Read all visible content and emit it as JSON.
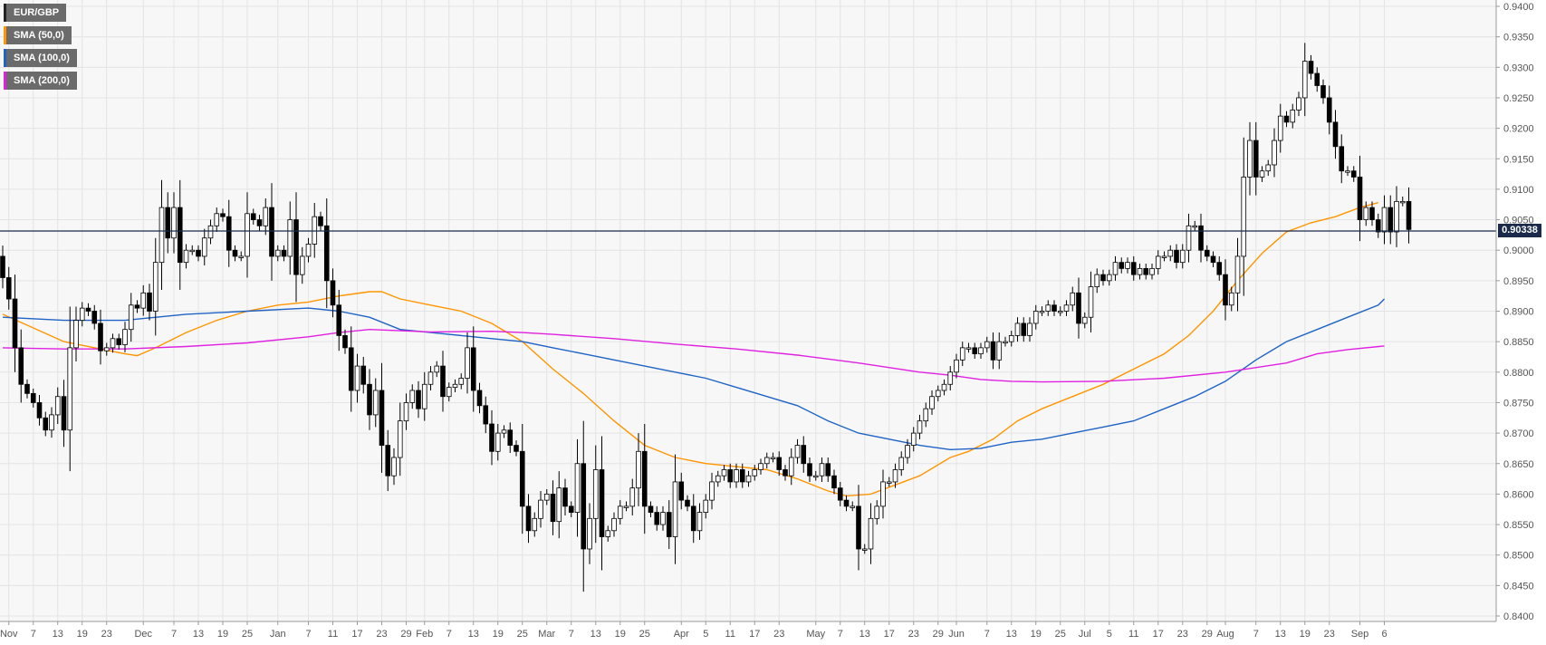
{
  "legend": [
    {
      "label": "EUR/GBP",
      "color": "#222222"
    },
    {
      "label": "SMA (50,0)",
      "color": "#ff9500"
    },
    {
      "label": "SMA (100,0)",
      "color": "#1f63c6"
    },
    {
      "label": "SMA (200,0)",
      "color": "#e020e0"
    }
  ],
  "last_price": "0.90338",
  "chart_data": {
    "type": "candlestick",
    "symbol": "EUR/GBP",
    "ylim": [
      0.84,
      0.94
    ],
    "y_ticks": [
      "0.9400",
      "0.9350",
      "0.9300",
      "0.9250",
      "0.9200",
      "0.9150",
      "0.9100",
      "0.9050",
      "0.9000",
      "0.8950",
      "0.8900",
      "0.8850",
      "0.8800",
      "0.8750",
      "0.8700",
      "0.8650",
      "0.8600",
      "0.8550",
      "0.8500",
      "0.8450",
      "0.8400"
    ],
    "x_ticks": [
      {
        "i": 1,
        "label": "Nov"
      },
      {
        "i": 5,
        "label": "7"
      },
      {
        "i": 9,
        "label": "13"
      },
      {
        "i": 13,
        "label": "19"
      },
      {
        "i": 17,
        "label": "23"
      },
      {
        "i": 23,
        "label": "Dec"
      },
      {
        "i": 28,
        "label": "7"
      },
      {
        "i": 32,
        "label": "13"
      },
      {
        "i": 36,
        "label": "19"
      },
      {
        "i": 40,
        "label": "25"
      },
      {
        "i": 45,
        "label": "Jan"
      },
      {
        "i": 50,
        "label": "7"
      },
      {
        "i": 54,
        "label": "11"
      },
      {
        "i": 58,
        "label": "17"
      },
      {
        "i": 62,
        "label": "23"
      },
      {
        "i": 66,
        "label": "29"
      },
      {
        "i": 69,
        "label": "Feb"
      },
      {
        "i": 73,
        "label": "7"
      },
      {
        "i": 77,
        "label": "13"
      },
      {
        "i": 81,
        "label": "19"
      },
      {
        "i": 85,
        "label": "25"
      },
      {
        "i": 89,
        "label": "Mar"
      },
      {
        "i": 93,
        "label": "7"
      },
      {
        "i": 97,
        "label": "13"
      },
      {
        "i": 101,
        "label": "19"
      },
      {
        "i": 105,
        "label": "25"
      },
      {
        "i": 111,
        "label": "Apr"
      },
      {
        "i": 115,
        "label": "5"
      },
      {
        "i": 119,
        "label": "11"
      },
      {
        "i": 123,
        "label": "17"
      },
      {
        "i": 127,
        "label": "23"
      },
      {
        "i": 133,
        "label": "May"
      },
      {
        "i": 137,
        "label": "7"
      },
      {
        "i": 141,
        "label": "13"
      },
      {
        "i": 145,
        "label": "17"
      },
      {
        "i": 149,
        "label": "23"
      },
      {
        "i": 153,
        "label": "29"
      },
      {
        "i": 156,
        "label": "Jun"
      },
      {
        "i": 161,
        "label": "7"
      },
      {
        "i": 165,
        "label": "13"
      },
      {
        "i": 169,
        "label": "19"
      },
      {
        "i": 173,
        "label": "25"
      },
      {
        "i": 177,
        "label": "Jul"
      },
      {
        "i": 181,
        "label": "5"
      },
      {
        "i": 185,
        "label": "11"
      },
      {
        "i": 189,
        "label": "17"
      },
      {
        "i": 193,
        "label": "23"
      },
      {
        "i": 197,
        "label": "29"
      },
      {
        "i": 200,
        "label": "Aug"
      },
      {
        "i": 205,
        "label": "7"
      },
      {
        "i": 209,
        "label": "13"
      },
      {
        "i": 213,
        "label": "19"
      },
      {
        "i": 217,
        "label": "23"
      },
      {
        "i": 222,
        "label": "Sep"
      },
      {
        "i": 226,
        "label": "6"
      }
    ],
    "close": [
      0.8955,
      0.892,
      0.884,
      0.878,
      0.8765,
      0.875,
      0.8725,
      0.8705,
      0.873,
      0.876,
      0.8705,
      0.884,
      0.8885,
      0.8905,
      0.89,
      0.888,
      0.8835,
      0.884,
      0.8855,
      0.8845,
      0.887,
      0.891,
      0.8905,
      0.893,
      0.89,
      0.898,
      0.907,
      0.902,
      0.907,
      0.898,
      0.9,
      0.9,
      0.899,
      0.902,
      0.904,
      0.906,
      0.9055,
      0.9,
      0.899,
      0.899,
      0.906,
      0.905,
      0.904,
      0.907,
      0.899,
      0.9,
      0.899,
      0.905,
      0.896,
      0.899,
      0.901,
      0.9055,
      0.904,
      0.895,
      0.891,
      0.886,
      0.884,
      0.877,
      0.881,
      0.878,
      0.873,
      0.877,
      0.868,
      0.863,
      0.866,
      0.872,
      0.875,
      0.877,
      0.874,
      0.878,
      0.88,
      0.881,
      0.876,
      0.8775,
      0.878,
      0.879,
      0.884,
      0.877,
      0.8745,
      0.8715,
      0.867,
      0.87,
      0.8705,
      0.868,
      0.867,
      0.858,
      0.854,
      0.856,
      0.859,
      0.86,
      0.8555,
      0.861,
      0.858,
      0.857,
      0.865,
      0.851,
      0.856,
      0.864,
      0.853,
      0.854,
      0.856,
      0.858,
      0.858,
      0.861,
      0.867,
      0.858,
      0.857,
      0.855,
      0.857,
      0.853,
      0.862,
      0.859,
      0.858,
      0.854,
      0.857,
      0.859,
      0.862,
      0.863,
      0.864,
      0.862,
      0.864,
      0.862,
      0.863,
      0.864,
      0.865,
      0.866,
      0.866,
      0.864,
      0.863,
      0.866,
      0.868,
      0.865,
      0.863,
      0.863,
      0.865,
      0.863,
      0.861,
      0.859,
      0.858,
      0.858,
      0.851,
      0.851,
      0.856,
      0.858,
      0.862,
      0.862,
      0.864,
      0.866,
      0.868,
      0.87,
      0.872,
      0.874,
      0.876,
      0.877,
      0.878,
      0.88,
      0.882,
      0.884,
      0.884,
      0.883,
      0.884,
      0.885,
      0.882,
      0.885,
      0.885,
      0.886,
      0.888,
      0.886,
      0.888,
      0.89,
      0.89,
      0.891,
      0.89,
      0.89,
      0.891,
      0.893,
      0.888,
      0.889,
      0.894,
      0.896,
      0.895,
      0.896,
      0.898,
      0.897,
      0.898,
      0.896,
      0.897,
      0.896,
      0.897,
      0.899,
      0.899,
      0.9,
      0.898,
      0.9,
      0.904,
      0.904,
      0.9,
      0.899,
      0.898,
      0.896,
      0.891,
      0.893,
      0.899,
      0.912,
      0.918,
      0.912,
      0.913,
      0.914,
      0.918,
      0.922,
      0.921,
      0.923,
      0.925,
      0.931,
      0.929,
      0.927,
      0.925,
      0.921,
      0.917,
      0.913,
      0.913,
      0.912,
      0.905,
      0.907,
      0.905,
      0.903,
      0.907,
      0.903,
      0.908,
      0.908,
      0.9034
    ],
    "sma": [
      {
        "name": "SMA (50,0)",
        "color": "#ff9500",
        "points": [
          [
            0,
            0.8895
          ],
          [
            10,
            0.885
          ],
          [
            20,
            0.883
          ],
          [
            22,
            0.8827
          ],
          [
            25,
            0.884
          ],
          [
            30,
            0.8865
          ],
          [
            35,
            0.8885
          ],
          [
            40,
            0.89
          ],
          [
            45,
            0.891
          ],
          [
            50,
            0.8915
          ],
          [
            55,
            0.8925
          ],
          [
            60,
            0.8932
          ],
          [
            62,
            0.8932
          ],
          [
            65,
            0.892
          ],
          [
            70,
            0.891
          ],
          [
            75,
            0.89
          ],
          [
            80,
            0.888
          ],
          [
            85,
            0.885
          ],
          [
            90,
            0.8805
          ],
          [
            95,
            0.8765
          ],
          [
            100,
            0.872
          ],
          [
            105,
            0.868
          ],
          [
            110,
            0.866
          ],
          [
            115,
            0.865
          ],
          [
            120,
            0.8645
          ],
          [
            125,
            0.864
          ],
          [
            130,
            0.8625
          ],
          [
            135,
            0.8605
          ],
          [
            138,
            0.8597
          ],
          [
            142,
            0.86
          ],
          [
            146,
            0.8615
          ],
          [
            150,
            0.863
          ],
          [
            155,
            0.866
          ],
          [
            158,
            0.867
          ],
          [
            162,
            0.869
          ],
          [
            166,
            0.872
          ],
          [
            170,
            0.874
          ],
          [
            175,
            0.876
          ],
          [
            180,
            0.878
          ],
          [
            185,
            0.8805
          ],
          [
            190,
            0.883
          ],
          [
            194,
            0.886
          ],
          [
            198,
            0.89
          ],
          [
            202,
            0.895
          ],
          [
            206,
            0.8995
          ],
          [
            210,
            0.903
          ],
          [
            214,
            0.9045
          ],
          [
            218,
            0.9055
          ],
          [
            222,
            0.907
          ],
          [
            225,
            0.9078
          ]
        ]
      },
      {
        "name": "SMA (100,0)",
        "color": "#1f63c6",
        "points": [
          [
            0,
            0.889
          ],
          [
            10,
            0.8885
          ],
          [
            20,
            0.8885
          ],
          [
            30,
            0.8895
          ],
          [
            40,
            0.89
          ],
          [
            50,
            0.8905
          ],
          [
            55,
            0.89
          ],
          [
            60,
            0.889
          ],
          [
            65,
            0.887
          ],
          [
            70,
            0.8865
          ],
          [
            75,
            0.886
          ],
          [
            80,
            0.8855
          ],
          [
            85,
            0.885
          ],
          [
            90,
            0.884
          ],
          [
            95,
            0.883
          ],
          [
            100,
            0.882
          ],
          [
            105,
            0.881
          ],
          [
            110,
            0.88
          ],
          [
            115,
            0.879
          ],
          [
            120,
            0.8775
          ],
          [
            125,
            0.876
          ],
          [
            130,
            0.8745
          ],
          [
            135,
            0.872
          ],
          [
            140,
            0.87
          ],
          [
            145,
            0.869
          ],
          [
            150,
            0.868
          ],
          [
            155,
            0.8673
          ],
          [
            160,
            0.8675
          ],
          [
            165,
            0.8685
          ],
          [
            170,
            0.869
          ],
          [
            175,
            0.87
          ],
          [
            180,
            0.871
          ],
          [
            185,
            0.872
          ],
          [
            190,
            0.874
          ],
          [
            195,
            0.876
          ],
          [
            200,
            0.8785
          ],
          [
            205,
            0.882
          ],
          [
            210,
            0.885
          ],
          [
            215,
            0.887
          ],
          [
            220,
            0.889
          ],
          [
            225,
            0.891
          ],
          [
            226,
            0.892
          ]
        ]
      },
      {
        "name": "SMA (200,0)",
        "color": "#e020e0",
        "points": [
          [
            0,
            0.884
          ],
          [
            10,
            0.8838
          ],
          [
            20,
            0.8838
          ],
          [
            30,
            0.8842
          ],
          [
            40,
            0.8848
          ],
          [
            50,
            0.8858
          ],
          [
            55,
            0.8865
          ],
          [
            60,
            0.887
          ],
          [
            70,
            0.8866
          ],
          [
            80,
            0.8867
          ],
          [
            85,
            0.8865
          ],
          [
            90,
            0.8862
          ],
          [
            100,
            0.8855
          ],
          [
            110,
            0.8846
          ],
          [
            120,
            0.8838
          ],
          [
            130,
            0.8828
          ],
          [
            140,
            0.8815
          ],
          [
            150,
            0.88
          ],
          [
            155,
            0.8795
          ],
          [
            160,
            0.8788
          ],
          [
            165,
            0.8785
          ],
          [
            170,
            0.8784
          ],
          [
            180,
            0.8785
          ],
          [
            190,
            0.879
          ],
          [
            200,
            0.88
          ],
          [
            210,
            0.8815
          ],
          [
            215,
            0.883
          ],
          [
            220,
            0.8837
          ],
          [
            226,
            0.8843
          ]
        ]
      }
    ]
  }
}
